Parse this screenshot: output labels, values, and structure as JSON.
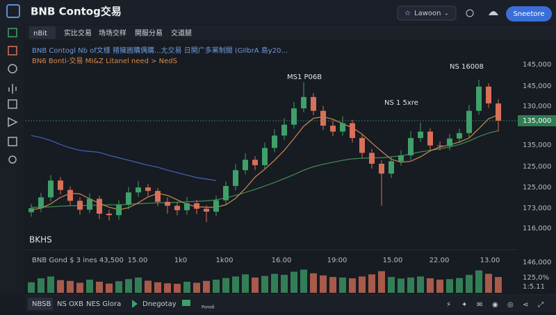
{
  "header": {
    "title": "BNB Contog交易",
    "account": "Lawoon",
    "button": "Sneetore"
  },
  "tabs": [
    "nBit",
    "实比交易",
    "场场交样",
    "開服分易",
    "交道腿"
  ],
  "legend": [
    "BNB Contogl  Nb of文樣 猪擁圓購偶購...尢交易  日開广多黨制關 (GIlbrA 島y20...",
    "BN6 Bonti-交易 MI&Z Litanel need > NedS"
  ],
  "corner_label": "BKHS",
  "annotations": [
    "MS1 P06B",
    "NS 1 5xre",
    "NS 16008"
  ],
  "time_labels": [
    "BNB Gond $ 3 ines 43,500",
    "15.00",
    "1k0",
    "1k00",
    "16.00",
    "19:00",
    "15.00",
    "22.00",
    "13.00"
  ],
  "price_labels": [
    "145,000",
    "145,000",
    "130,000",
    "135,000",
    "125,000",
    "125,000",
    "173,000",
    "116,000",
    "146,000",
    "125,0%",
    "1:5.11"
  ],
  "price_tag": "135,000",
  "footer": {
    "tabs": [
      "NBSB",
      "NS OXB",
      "NES Glora"
    ],
    "play": "Dnegotay",
    "icon_label": "Porodi"
  },
  "chart_data": {
    "type": "candlestick",
    "ylim": [
      110000,
      150000
    ],
    "up_color": "#3fa06a",
    "down_color": "#d9705a",
    "open": [
      115500,
      116300,
      118500,
      121900,
      120000,
      117800,
      116000,
      118200,
      115200,
      114900,
      117000,
      119500,
      120500,
      119800,
      117600,
      116800,
      115900,
      117300,
      116200,
      115600,
      117900,
      120800,
      124000,
      126100,
      125000,
      128500,
      131000,
      133200,
      136500,
      138800,
      136000,
      133000,
      131800,
      133500,
      130500,
      127500,
      125300,
      123300,
      125800,
      127000,
      130500,
      131800,
      129000,
      128900,
      130400,
      131500,
      136000,
      140900,
      137500
    ],
    "high": [
      117200,
      119400,
      123000,
      122600,
      120700,
      118500,
      119300,
      118800,
      116000,
      117900,
      120600,
      121800,
      121200,
      120400,
      118500,
      117500,
      118600,
      118000,
      116900,
      118800,
      121700,
      125200,
      127400,
      126800,
      129600,
      132300,
      134500,
      137800,
      141800,
      139600,
      137000,
      134000,
      134900,
      134200,
      131200,
      128300,
      126000,
      126700,
      128000,
      131900,
      133600,
      132500,
      129800,
      131300,
      132400,
      137200,
      142300,
      141600,
      138400
    ],
    "low": [
      114600,
      115500,
      117700,
      119100,
      116900,
      115000,
      115300,
      114100,
      113800,
      114000,
      116100,
      118600,
      118800,
      116700,
      115200,
      114900,
      115000,
      115100,
      113500,
      114700,
      117000,
      119900,
      123100,
      124000,
      124200,
      127600,
      130100,
      132400,
      135700,
      135100,
      132100,
      130900,
      131000,
      129600,
      126500,
      124300,
      116800,
      122400,
      124900,
      126100,
      129700,
      128100,
      128000,
      128000,
      129500,
      130600,
      135200,
      136600,
      131800
    ],
    "close": [
      116300,
      118500,
      121900,
      120000,
      117800,
      116000,
      118200,
      115200,
      114900,
      117000,
      119500,
      120500,
      119800,
      117600,
      116800,
      115900,
      117300,
      116200,
      115600,
      117900,
      120800,
      124000,
      126100,
      125000,
      128500,
      131000,
      133200,
      136500,
      138800,
      136000,
      133000,
      131800,
      133500,
      130500,
      127500,
      125300,
      123300,
      125800,
      127000,
      130500,
      131800,
      129000,
      128900,
      130400,
      131500,
      136000,
      140900,
      137500,
      134000
    ],
    "ma_lines": [
      {
        "color": "#3f5fae",
        "values": [
          131000,
          130600,
          130000,
          129200,
          128500,
          128000,
          127800,
          127600,
          127000,
          126500,
          126000,
          125500,
          125000,
          124600,
          124000,
          123500,
          123000,
          122500,
          122200,
          121900,
          null,
          null,
          null,
          null,
          null,
          null,
          null,
          null,
          null,
          null,
          null,
          null,
          null,
          null,
          null,
          null,
          null,
          null,
          null,
          null,
          null,
          null,
          null,
          null,
          null,
          null,
          null,
          null,
          null
        ]
      },
      {
        "color": "#3d8a55",
        "values": [
          116500,
          116500,
          116600,
          116700,
          116800,
          116800,
          116900,
          116900,
          117000,
          117000,
          117100,
          117200,
          117300,
          117400,
          117400,
          117500,
          117600,
          117700,
          117800,
          118000,
          118400,
          118900,
          119500,
          120100,
          120800,
          121500,
          122300,
          123100,
          124000,
          124700,
          125200,
          125600,
          126000,
          126300,
          126400,
          126500,
          126500,
          126700,
          126900,
          127300,
          127700,
          128000,
          128300,
          128700,
          129200,
          129900,
          130800,
          131500,
          132000
        ]
      },
      {
        "color": "#c4864a",
        "values": [
          116000,
          116300,
          117200,
          118500,
          119300,
          119200,
          118200,
          117300,
          116500,
          116000,
          116400,
          117400,
          118600,
          119300,
          118900,
          118000,
          117100,
          116600,
          116500,
          116500,
          117000,
          118300,
          120300,
          122600,
          124200,
          126000,
          128000,
          130400,
          132900,
          134500,
          134800,
          134300,
          133400,
          132600,
          131300,
          129500,
          127800,
          126200,
          125600,
          125800,
          126700,
          127900,
          128700,
          129100,
          129700,
          130500,
          132400,
          134400,
          135200
        ]
      }
    ],
    "volume_lim": [
      0,
      100
    ],
    "volume": [
      40,
      55,
      62,
      48,
      45,
      38,
      50,
      42,
      35,
      44,
      52,
      58,
      46,
      40,
      36,
      34,
      42,
      38,
      45,
      50,
      56,
      62,
      70,
      58,
      64,
      72,
      68,
      80,
      88,
      74,
      66,
      60,
      58,
      55,
      62,
      70,
      82,
      60,
      54,
      58,
      62,
      55,
      50,
      52,
      56,
      68,
      85,
      72,
      60
    ]
  }
}
